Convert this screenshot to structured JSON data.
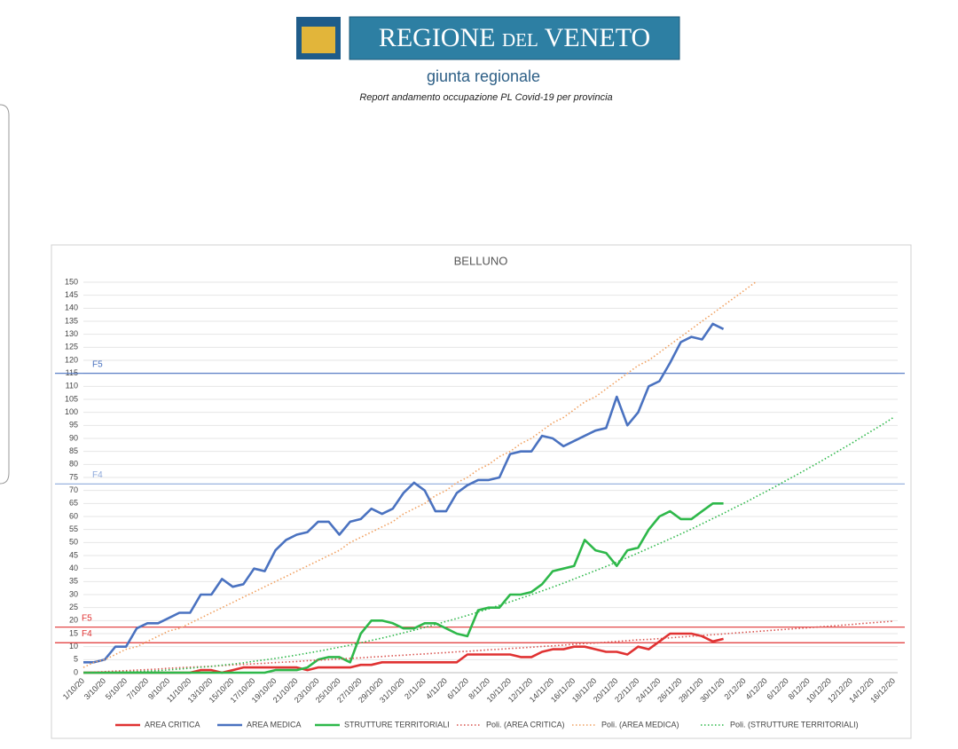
{
  "header": {
    "logo_text": "REGIONE del VENETO",
    "subtitle": "giunta regionale",
    "report_title": "Report andamento occupazione PL Covid-19 per provincia"
  },
  "chart_data": {
    "type": "line",
    "title": "BELLUNO",
    "categories": [
      "1/10/20",
      null,
      "3/10/20",
      null,
      "5/10/20",
      null,
      "7/10/20",
      null,
      "9/10/20",
      null,
      "11/10/20",
      null,
      "13/10/20",
      null,
      "15/10/20",
      null,
      "17/10/20",
      null,
      "19/10/20",
      null,
      "21/10/20",
      null,
      "23/10/20",
      null,
      "25/10/20",
      null,
      "27/10/20",
      null,
      "29/10/20",
      null,
      "31/10/20",
      null,
      "2/11/20",
      null,
      "4/11/20",
      null,
      "6/11/20",
      null,
      "8/11/20",
      null,
      "10/11/20",
      null,
      "12/11/20",
      null,
      "14/11/20",
      null,
      "16/11/20",
      null,
      "18/11/20",
      null,
      "20/11/20",
      null,
      "22/11/20",
      null,
      "24/11/20",
      null,
      "26/11/20",
      null,
      "28/11/20",
      null,
      "30/11/20",
      null,
      "2/12/20",
      null,
      "4/12/20",
      null,
      "6/12/20",
      null,
      "8/12/20",
      null,
      "10/12/20",
      null,
      "12/12/20",
      null,
      "14/12/20",
      null,
      "16/12/20"
    ],
    "ylim": [
      0,
      150
    ],
    "yticks": [
      0,
      5,
      10,
      15,
      20,
      25,
      30,
      35,
      40,
      45,
      50,
      55,
      60,
      65,
      70,
      75,
      80,
      85,
      90,
      95,
      100,
      105,
      110,
      115,
      120,
      125,
      130,
      135,
      140,
      145,
      150
    ],
    "grid": true,
    "series": [
      {
        "name": "AREA CRITICA",
        "color": "#e03232",
        "style": "solid",
        "values": [
          0,
          0,
          0,
          0,
          0,
          0,
          0,
          0,
          0,
          0,
          0,
          1,
          1,
          0,
          1,
          2,
          2,
          2,
          2,
          2,
          2,
          1,
          2,
          2,
          2,
          2,
          3,
          3,
          4,
          4,
          4,
          4,
          4,
          4,
          4,
          4,
          7,
          7,
          7,
          7,
          7,
          6,
          6,
          8,
          9,
          9,
          10,
          10,
          9,
          8,
          8,
          7,
          10,
          9,
          12,
          15,
          15,
          15,
          14,
          12,
          13,
          null,
          null,
          null,
          null,
          null,
          null,
          null,
          null,
          null,
          null,
          null,
          null,
          null,
          null,
          null,
          null
        ]
      },
      {
        "name": "AREA MEDICA",
        "color": "#4a72c0",
        "style": "solid",
        "values": [
          4,
          4,
          5,
          10,
          10,
          17,
          19,
          19,
          21,
          23,
          23,
          30,
          30,
          36,
          33,
          34,
          40,
          39,
          47,
          51,
          53,
          54,
          58,
          58,
          53,
          58,
          59,
          63,
          61,
          63,
          69,
          73,
          70,
          62,
          62,
          69,
          72,
          74,
          74,
          75,
          84,
          85,
          85,
          91,
          90,
          87,
          89,
          91,
          93,
          94,
          106,
          95,
          100,
          110,
          112,
          119,
          127,
          129,
          128,
          134,
          132,
          null,
          null,
          null,
          null,
          null,
          null,
          null,
          null,
          null,
          null,
          null,
          null,
          null,
          null,
          null,
          null
        ]
      },
      {
        "name": "STRUTTURE TERRITORIALI",
        "color": "#2eb84a",
        "style": "solid",
        "values": [
          0,
          0,
          0,
          0,
          0,
          0,
          0,
          0,
          0,
          0,
          0,
          0,
          0,
          0,
          0,
          0,
          0,
          0,
          1,
          1,
          1,
          2,
          5,
          6,
          6,
          4,
          15,
          20,
          20,
          19,
          17,
          17,
          19,
          19,
          17,
          15,
          14,
          24,
          25,
          25,
          30,
          30,
          31,
          34,
          39,
          40,
          41,
          51,
          47,
          46,
          41,
          47,
          48,
          55,
          60,
          62,
          59,
          59,
          62,
          65,
          65,
          null,
          null,
          null,
          null,
          null,
          null,
          null,
          null,
          null,
          null,
          null,
          null,
          null,
          null,
          null,
          null
        ]
      },
      {
        "name": "Poli. (AREA CRITICA)",
        "color": "#d9534f",
        "style": "dotted",
        "values": [
          0,
          0.2,
          0.4,
          0.6,
          0.8,
          1.0,
          1.2,
          1.4,
          1.7,
          1.9,
          2.1,
          2.3,
          2.5,
          2.7,
          3.0,
          3.2,
          3.4,
          3.6,
          3.9,
          4.1,
          4.3,
          4.6,
          4.8,
          5.0,
          5.3,
          5.5,
          5.7,
          6.0,
          6.2,
          6.5,
          6.7,
          7.0,
          7.2,
          7.5,
          7.7,
          8.0,
          8.2,
          8.5,
          8.8,
          9.0,
          9.3,
          9.5,
          9.8,
          10.1,
          10.3,
          10.6,
          10.9,
          11.2,
          11.4,
          11.7,
          12.0,
          12.3,
          12.6,
          12.8,
          13.1,
          13.4,
          13.7,
          14.0,
          14.3,
          14.6,
          14.9,
          15.2,
          15.5,
          15.8,
          16.1,
          16.4,
          16.7,
          17.0,
          17.3,
          17.6,
          17.9,
          18.2,
          18.5,
          18.9,
          19.2,
          19.5,
          19.8
        ]
      },
      {
        "name": "Poli. (AREA MEDICA)",
        "color": "#f0a060",
        "style": "dotted",
        "values": [
          2,
          4,
          5,
          7,
          9,
          10,
          12,
          14,
          16,
          17,
          19,
          21,
          23,
          25,
          27,
          29,
          31,
          33,
          35,
          37,
          39,
          41,
          43,
          45,
          47,
          50,
          52,
          54,
          56,
          58,
          61,
          63,
          65,
          68,
          70,
          73,
          75,
          78,
          80,
          83,
          85,
          88,
          90,
          93,
          96,
          98,
          101,
          104,
          106,
          109,
          112,
          115,
          118,
          120,
          123,
          126,
          129,
          132,
          135,
          138,
          141,
          144,
          147,
          150,
          null,
          null,
          null,
          null,
          null,
          null,
          null,
          null,
          null,
          null,
          null,
          null,
          null
        ]
      },
      {
        "name": "Poli. (STRUTTURE TERRITORIALI)",
        "color": "#2eb84a",
        "style": "dotted",
        "values": [
          0,
          0.0,
          0.1,
          0.2,
          0.3,
          0.4,
          0.6,
          0.8,
          1.1,
          1.4,
          1.7,
          2.1,
          2.4,
          2.9,
          3.3,
          3.8,
          4.4,
          4.9,
          5.5,
          6.1,
          6.8,
          7.5,
          8.2,
          9.0,
          9.8,
          10.6,
          11.5,
          12.4,
          13.3,
          14.3,
          15.3,
          16.3,
          17.4,
          18.5,
          19.7,
          20.8,
          22.0,
          23.3,
          24.5,
          25.9,
          27.2,
          28.6,
          30.0,
          31.4,
          32.9,
          34.4,
          36.0,
          37.6,
          39.2,
          40.8,
          42.5,
          44.2,
          46.0,
          47.8,
          49.6,
          51.4,
          53.3,
          55.2,
          57.2,
          59.2,
          61.2,
          63.3,
          65.3,
          67.5,
          69.6,
          71.8,
          74.1,
          76.3,
          78.6,
          80.9,
          83.3,
          85.7,
          88.1,
          90.6,
          93.1,
          95.6,
          98.2
        ]
      }
    ],
    "reference_lines": [
      {
        "label": "F5",
        "value": 115,
        "color": "#4a72c0"
      },
      {
        "label": "F4",
        "value": 72.5,
        "color": "#8ea9db"
      },
      {
        "label": "F5",
        "value": 17.5,
        "color": "#e03232"
      },
      {
        "label": "F4",
        "value": 11.5,
        "color": "#e03232"
      }
    ]
  }
}
